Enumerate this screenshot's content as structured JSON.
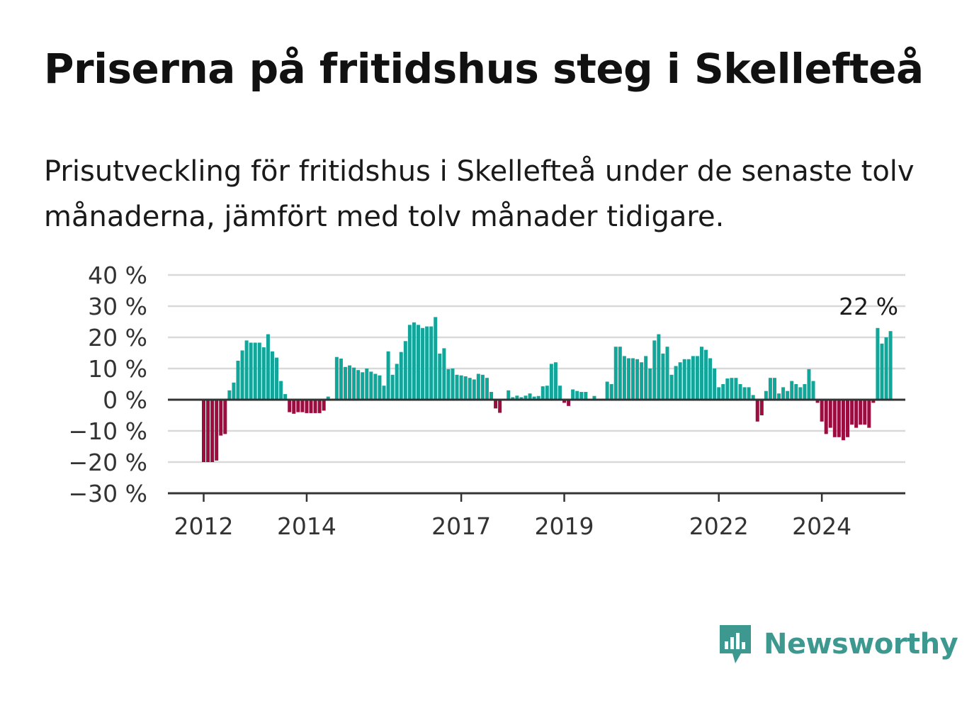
{
  "header": {
    "title": "Priserna på fritidshus steg i Skellefteå",
    "subtitle": "Prisutveckling för fritidshus i Skellefteå under de senaste tolv månaderna, jämfört med tolv månader tidigare."
  },
  "brand": {
    "name": "Newsworthy",
    "icon": "newsworthy-logo-icon",
    "color": "#3d9990"
  },
  "colors": {
    "positive": "#12a59a",
    "negative": "#9b0c3f",
    "grid": "#d9d9d9",
    "axis": "#333333"
  },
  "chart_data": {
    "type": "bar",
    "title": "Priserna på fritidshus steg i Skellefteå",
    "xlabel": "",
    "ylabel": "",
    "ylim": [
      -30,
      40
    ],
    "yticks": [
      40,
      30,
      20,
      10,
      0,
      -10,
      -20,
      -30
    ],
    "ytick_labels": [
      "40 %",
      "30 %",
      "20 %",
      "10 %",
      "0 %",
      "−10 %",
      "−20 %",
      "−30 %"
    ],
    "xticks": [
      "2012",
      "2014",
      "2017",
      "2019",
      "2022",
      "2024"
    ],
    "grid": true,
    "legend": "none",
    "start": "2012-01",
    "frequency": "monthly",
    "annotation": {
      "label": "22 %",
      "value": 22
    },
    "values": [
      -20,
      -20,
      -20,
      -19.5,
      -11.5,
      -11,
      3,
      5.5,
      12.5,
      15.8,
      19,
      18.3,
      18.3,
      18.3,
      16.8,
      21,
      15.5,
      13.5,
      6,
      1.8,
      -4,
      -4.5,
      -4,
      -4,
      -4.3,
      -4.3,
      -4.3,
      -4.3,
      -3.5,
      1,
      0,
      13.7,
      13.2,
      10.5,
      11,
      10.3,
      9.5,
      8.8,
      10,
      9,
      8.3,
      7.8,
      4.5,
      15.5,
      8,
      11.5,
      15.3,
      18.8,
      24,
      24.8,
      24,
      23,
      23.5,
      23.5,
      26.5,
      14.8,
      16.5,
      9.8,
      10,
      8,
      7.8,
      7.5,
      7,
      6.5,
      8.3,
      8,
      7,
      2.5,
      -2.8,
      -4.2,
      0,
      3,
      0.8,
      1.3,
      0.8,
      1.3,
      2,
      1,
      1.2,
      4.3,
      4.5,
      11.5,
      12,
      4.5,
      -1,
      -2,
      3.3,
      2.8,
      2.5,
      2.5,
      0,
      1.2,
      0.2,
      0,
      5.8,
      5,
      17,
      17,
      14,
      13.3,
      13.3,
      13,
      12,
      14,
      10,
      19,
      21,
      14.8,
      17,
      8,
      10.8,
      12,
      13,
      13,
      14,
      14,
      17,
      16,
      13.3,
      10,
      4,
      5,
      6.8,
      7,
      7,
      5,
      4,
      4,
      1.5,
      -7,
      -5,
      2.8,
      7,
      7,
      2,
      4,
      2.8,
      6,
      5,
      4,
      5,
      9.8,
      6,
      -1,
      -7,
      -11,
      -9,
      -12,
      -12,
      -13,
      -12,
      -8,
      -9,
      -8,
      -8,
      -9,
      -1,
      23,
      18,
      20,
      22
    ]
  }
}
